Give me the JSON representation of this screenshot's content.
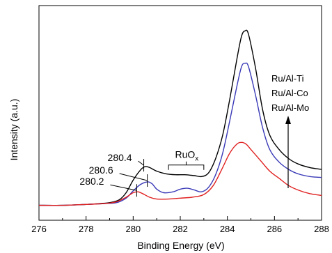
{
  "chart_data": {
    "type": "line",
    "xlabel": "Binding Energy (eV)",
    "ylabel": "Intensity (a.u.)",
    "xlim": [
      276,
      288
    ],
    "ylim": [
      0,
      100
    ],
    "x_ticks": [
      "276",
      "278",
      "280",
      "282",
      "284",
      "286",
      "288"
    ],
    "grid": false,
    "y_tick_labels_shown": false,
    "legend": {
      "placement": "right",
      "entries": [
        "Ru/Al-Ti",
        "Ru/Al-Co",
        "Ru/Al-Mo"
      ],
      "arrow": "up"
    },
    "series": [
      {
        "name": "Ru/Al-Ti",
        "color": "#000000",
        "points": [
          [
            276,
            -1
          ],
          [
            277,
            -1
          ],
          [
            278,
            -0.5
          ],
          [
            278.6,
            0
          ],
          [
            279,
            0.5
          ],
          [
            279.4,
            2
          ],
          [
            279.7,
            6
          ],
          [
            280.0,
            13
          ],
          [
            280.3,
            18.5
          ],
          [
            280.5,
            20.5
          ],
          [
            280.7,
            20
          ],
          [
            281.0,
            18
          ],
          [
            281.4,
            16.5
          ],
          [
            281.8,
            16
          ],
          [
            282.2,
            16
          ],
          [
            282.6,
            15.5
          ],
          [
            282.9,
            15
          ],
          [
            283.2,
            17
          ],
          [
            283.5,
            25
          ],
          [
            283.8,
            38
          ],
          [
            284.1,
            58
          ],
          [
            284.4,
            80
          ],
          [
            284.6,
            93
          ],
          [
            284.75,
            96
          ],
          [
            284.9,
            94
          ],
          [
            285.2,
            75
          ],
          [
            285.5,
            52
          ],
          [
            285.8,
            38
          ],
          [
            286.2,
            30
          ],
          [
            286.6,
            25
          ],
          [
            287.0,
            22
          ],
          [
            287.5,
            20
          ],
          [
            288,
            19
          ]
        ]
      },
      {
        "name": "Ru/Al-Co",
        "color": "#3a3ab8",
        "points": [
          [
            276,
            -1
          ],
          [
            277,
            -1
          ],
          [
            278,
            -0.5
          ],
          [
            278.8,
            0
          ],
          [
            279.3,
            0.5
          ],
          [
            279.7,
            3
          ],
          [
            280.0,
            7
          ],
          [
            280.3,
            10.5
          ],
          [
            280.6,
            12
          ],
          [
            280.8,
            11
          ],
          [
            281.0,
            8
          ],
          [
            281.3,
            6
          ],
          [
            281.7,
            6.5
          ],
          [
            282.0,
            8
          ],
          [
            282.3,
            8.5
          ],
          [
            282.6,
            7.5
          ],
          [
            282.9,
            6.5
          ],
          [
            283.2,
            9
          ],
          [
            283.5,
            16
          ],
          [
            283.8,
            28
          ],
          [
            284.1,
            46
          ],
          [
            284.4,
            65
          ],
          [
            284.6,
            76
          ],
          [
            284.75,
            78
          ],
          [
            284.9,
            76
          ],
          [
            285.2,
            60
          ],
          [
            285.5,
            42
          ],
          [
            285.8,
            30
          ],
          [
            286.2,
            23
          ],
          [
            286.6,
            19
          ],
          [
            287.0,
            16.5
          ],
          [
            287.5,
            15
          ],
          [
            288,
            14.5
          ]
        ]
      },
      {
        "name": "Ru/Al-Mo",
        "color": "#e02020",
        "points": [
          [
            276,
            -1
          ],
          [
            277,
            -1
          ],
          [
            278,
            -0.5
          ],
          [
            278.8,
            0
          ],
          [
            279.3,
            1
          ],
          [
            279.7,
            3.5
          ],
          [
            280.0,
            6
          ],
          [
            280.2,
            6.5
          ],
          [
            280.4,
            5.5
          ],
          [
            280.7,
            3.5
          ],
          [
            281.0,
            2.5
          ],
          [
            281.5,
            2.5
          ],
          [
            282.0,
            3
          ],
          [
            282.5,
            3.5
          ],
          [
            283.0,
            5
          ],
          [
            283.4,
            10
          ],
          [
            283.8,
            20
          ],
          [
            284.1,
            28
          ],
          [
            284.4,
            33
          ],
          [
            284.6,
            34
          ],
          [
            284.8,
            33
          ],
          [
            285.0,
            30
          ],
          [
            285.4,
            24
          ],
          [
            285.8,
            18
          ],
          [
            286.2,
            14
          ],
          [
            286.6,
            10
          ],
          [
            287.0,
            7.5
          ],
          [
            287.5,
            5.5
          ],
          [
            288,
            4.5
          ]
        ]
      }
    ],
    "annotations": [
      {
        "text": "280.4",
        "x": 280.45,
        "y": 20.5
      },
      {
        "text": "280.6",
        "x": 280.6,
        "y": 12
      },
      {
        "text": "280.2",
        "x": 280.15,
        "y": 6.5
      }
    ],
    "ruox_label": {
      "main": "RuO",
      "sub": "x",
      "from": 281.5,
      "to": 283.0,
      "y": 16
    }
  }
}
